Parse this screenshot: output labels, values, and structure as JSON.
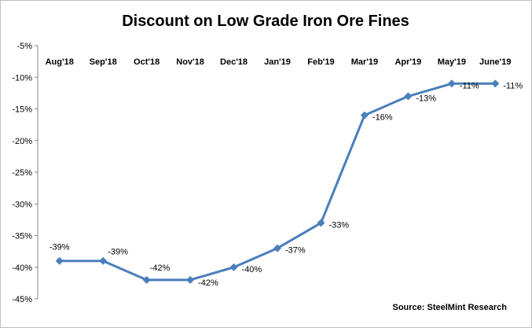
{
  "chart_data": {
    "type": "line",
    "title": "Discount on Low Grade Iron Ore Fines",
    "categories": [
      "Aug'18",
      "Sep'18",
      "Oct'18",
      "Nov'18",
      "Dec'18",
      "Jan'19",
      "Feb'19",
      "Mar'19",
      "Apr'19",
      "May'19",
      "June'19"
    ],
    "series": [
      {
        "values": [
          -39,
          -39,
          -42,
          -42,
          -40,
          -37,
          -33,
          -16,
          -13,
          -11,
          -11
        ]
      }
    ],
    "data_labels": [
      "-39%",
      "-39%",
      "-42%",
      "-42%",
      "-40%",
      "-37%",
      "-33%",
      "-16%",
      "-13%",
      "-11%",
      "-11%"
    ],
    "y_ticks": [
      "-5%",
      "-10%",
      "-15%",
      "-20%",
      "-25%",
      "-30%",
      "-35%",
      "-40%",
      "-45%"
    ],
    "ylim": [
      -45,
      -5
    ],
    "xlabel": "",
    "ylabel": "",
    "grid": false,
    "legend": "none",
    "category_axis_position": "top",
    "line_color": "#4a7ebb",
    "source": "Source: SteelMint Research"
  }
}
